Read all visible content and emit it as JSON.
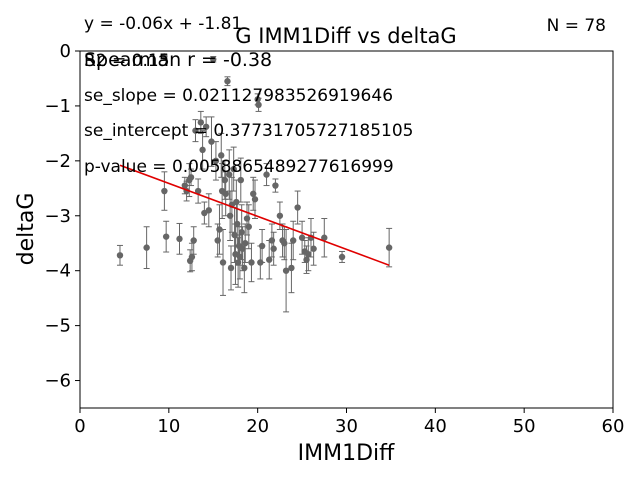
{
  "chart_data": {
    "type": "scatter",
    "title": "G IMM1Diff vs deltaG",
    "xlabel": "IMM1Diff",
    "ylabel": "deltaG",
    "xlim": [
      0,
      60
    ],
    "ylim": [
      -6.5,
      0
    ],
    "xticks": [
      "0",
      "10",
      "20",
      "30",
      "40",
      "50",
      "60"
    ],
    "yticks": [
      "0",
      "−1",
      "−2",
      "−3",
      "−4",
      "−5",
      "−6"
    ],
    "grid": false,
    "annotations": {
      "equation": "y = -0.06x + -1.81",
      "r2": "R2 = 0.15",
      "spearman": "Spearman r = -0.38",
      "se_slope": "se_slope = 0.021127983526919646",
      "se_intercept": "se_intercept = 0.37731705727185105",
      "p_value": "p-value = 0.0058865489277616999",
      "n": "N = 78"
    },
    "fit_line": {
      "x": [
        4.5,
        34.8
      ],
      "y": [
        -2.08,
        -3.9
      ]
    },
    "colors": {
      "points": "#666666",
      "fit": "#e00000"
    },
    "points": [
      [
        4.5,
        -3.72,
        0.18
      ],
      [
        7.5,
        -3.58,
        0.38
      ],
      [
        9.5,
        -2.55,
        0.35
      ],
      [
        9.7,
        -3.38,
        0.28
      ],
      [
        9.5,
        -0.1,
        0.04
      ],
      [
        11.2,
        -3.42,
        0.28
      ],
      [
        11.8,
        -2.45,
        0.15
      ],
      [
        12.0,
        -2.55,
        0.18
      ],
      [
        12.3,
        -2.35,
        0.3
      ],
      [
        12.5,
        -2.3,
        0.15
      ],
      [
        12.4,
        -3.82,
        0.2
      ],
      [
        12.6,
        -3.75,
        0.25
      ],
      [
        12.8,
        -3.45,
        0.25
      ],
      [
        13.0,
        -1.45,
        0.2
      ],
      [
        13.3,
        -2.55,
        0.22
      ],
      [
        13.6,
        -1.3,
        0.2
      ],
      [
        13.8,
        -1.8,
        0.35
      ],
      [
        14.0,
        -2.95,
        0.2
      ],
      [
        14.2,
        -1.38,
        0.18
      ],
      [
        14.5,
        -2.9,
        0.3
      ],
      [
        14.8,
        -1.65,
        0.45
      ],
      [
        15.0,
        -0.15,
        0.05
      ],
      [
        15.3,
        -2.0,
        0.35
      ],
      [
        15.5,
        -3.45,
        0.3
      ],
      [
        15.7,
        -3.25,
        0.45
      ],
      [
        15.9,
        -1.9,
        0.4
      ],
      [
        16.0,
        -2.55,
        0.5
      ],
      [
        16.1,
        -3.85,
        0.6
      ],
      [
        16.3,
        -2.35,
        0.35
      ],
      [
        16.4,
        -2.6,
        0.4
      ],
      [
        16.6,
        -0.55,
        0.08
      ],
      [
        16.8,
        -2.25,
        0.45
      ],
      [
        16.9,
        -3.0,
        0.45
      ],
      [
        17.0,
        -3.95,
        0.4
      ],
      [
        17.1,
        -2.8,
        0.5
      ],
      [
        17.3,
        -2.15,
        0.4
      ],
      [
        17.4,
        -3.35,
        0.5
      ],
      [
        17.5,
        -3.7,
        0.55
      ],
      [
        17.6,
        -2.75,
        0.4
      ],
      [
        17.7,
        -3.15,
        0.4
      ],
      [
        17.8,
        -3.85,
        0.45
      ],
      [
        17.9,
        -3.55,
        0.35
      ],
      [
        18.0,
        -3.75,
        0.4
      ],
      [
        18.1,
        -2.35,
        0.4
      ],
      [
        18.2,
        -3.3,
        0.5
      ],
      [
        18.3,
        -3.6,
        0.4
      ],
      [
        18.5,
        -3.95,
        0.45
      ],
      [
        18.6,
        -3.5,
        0.35
      ],
      [
        18.8,
        -3.05,
        0.3
      ],
      [
        19.0,
        -3.2,
        0.4
      ],
      [
        19.3,
        -3.85,
        0.35
      ],
      [
        19.5,
        -2.6,
        0.3
      ],
      [
        19.7,
        -2.7,
        0.35
      ],
      [
        20.0,
        -0.88,
        0.1
      ],
      [
        20.1,
        -0.98,
        0.12
      ],
      [
        20.3,
        -3.85,
        0.3
      ],
      [
        20.5,
        -3.55,
        0.3
      ],
      [
        21.0,
        -2.25,
        0.2
      ],
      [
        21.3,
        -3.8,
        0.35
      ],
      [
        21.6,
        -3.45,
        0.3
      ],
      [
        21.8,
        -3.6,
        0.3
      ],
      [
        22.0,
        -2.45,
        0.12
      ],
      [
        22.5,
        -3.0,
        0.25
      ],
      [
        22.8,
        -3.45,
        0.3
      ],
      [
        23.0,
        -3.5,
        0.3
      ],
      [
        23.2,
        -4.0,
        0.75
      ],
      [
        23.8,
        -3.95,
        0.45
      ],
      [
        24.0,
        -3.45,
        0.35
      ],
      [
        24.5,
        -2.85,
        0.3
      ],
      [
        25.0,
        -3.4,
        0.3
      ],
      [
        25.3,
        -3.65,
        0.2
      ],
      [
        25.5,
        -3.8,
        0.25
      ],
      [
        25.7,
        -3.7,
        0.3
      ],
      [
        26.0,
        -3.4,
        0.35
      ],
      [
        26.3,
        -3.6,
        0.3
      ],
      [
        27.5,
        -3.4,
        0.35
      ],
      [
        29.5,
        -3.75,
        0.1
      ],
      [
        34.8,
        -3.58,
        0.35
      ]
    ]
  }
}
